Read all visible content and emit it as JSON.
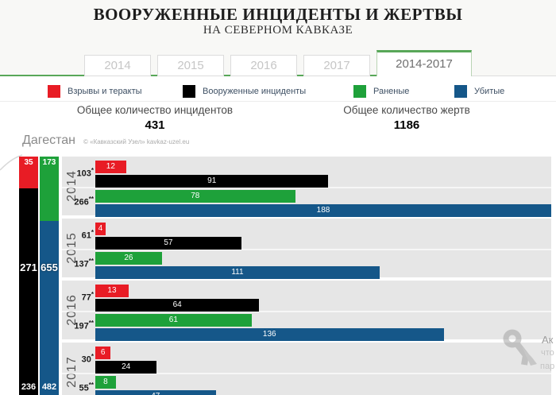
{
  "header": {
    "title": "ВООРУЖЕННЫЕ ИНЦИДЕНТЫ И ЖЕРТВЫ",
    "subtitle": "НА СЕВЕРНОМ КАВКАЗЕ"
  },
  "tabs": [
    {
      "label": "2014",
      "active": false
    },
    {
      "label": "2015",
      "active": false
    },
    {
      "label": "2016",
      "active": false
    },
    {
      "label": "2017",
      "active": false
    },
    {
      "label": "2014-2017",
      "active": true
    }
  ],
  "legend": [
    {
      "label": "Взрывы и теракты",
      "color": "#e81c25",
      "x": 60
    },
    {
      "label": "Вооруженные инциденты",
      "color": "#000000",
      "x": 230
    },
    {
      "label": "Раненые",
      "color": "#1ea13a",
      "x": 445
    },
    {
      "label": "Убитые",
      "color": "#155789",
      "x": 572
    }
  ],
  "stats": {
    "incidents_label": "Общее количество инцидентов",
    "incidents_value": "431",
    "victims_label": "Общее количество жертв",
    "victims_value": "1186"
  },
  "region": {
    "name": "Дагестан",
    "attribution": "© «Кавказский Узел» kavkaz-uzel.eu"
  },
  "watermark": {
    "lines": [
      "Ак",
      "что",
      "пар"
    ]
  },
  "colors": {
    "accent_green": "#58a758",
    "panel_gray": "#e6e6e6",
    "red": "#e81c25",
    "black": "#000000",
    "green": "#1ea13a",
    "blue": "#155789"
  },
  "chart_data": {
    "type": "bar",
    "orientation": "horizontal",
    "title": "Дагестан",
    "grid": false,
    "legend_position": "top",
    "x_max": 178,
    "categories": [
      "2014",
      "2015",
      "2016",
      "2017"
    ],
    "series": [
      {
        "name": "Взрывы и теракты",
        "color": "#e81c25",
        "values": [
          12,
          4,
          13,
          6
        ]
      },
      {
        "name": "Вооруженные инциденты",
        "color": "#000000",
        "values": [
          91,
          57,
          64,
          24
        ]
      },
      {
        "name": "Раненые",
        "color": "#1ea13a",
        "values": [
          78,
          26,
          61,
          8
        ]
      },
      {
        "name": "Убитые",
        "color": "#155789",
        "values": [
          188,
          111,
          136,
          47
        ]
      }
    ],
    "year_side_labels": [
      {
        "incidents": "103",
        "incidents_mark": "*",
        "victims": "266",
        "victims_mark": "**"
      },
      {
        "incidents": "61",
        "incidents_mark": "*",
        "victims": "137",
        "victims_mark": "**"
      },
      {
        "incidents": "77",
        "incidents_mark": "*",
        "victims": "197",
        "victims_mark": "**"
      },
      {
        "incidents": "30",
        "incidents_mark": "*",
        "victims": "55",
        "victims_mark": "**"
      }
    ],
    "summary_columns": [
      {
        "name": "incidents",
        "top_value": 35,
        "top_color": "#e81c25",
        "rest_value": 236,
        "rest_color": "#000000",
        "total": 271,
        "units_total": 271
      },
      {
        "name": "victims",
        "top_value": 173,
        "top_color": "#1ea13a",
        "rest_value": 482,
        "rest_color": "#155789",
        "total": 655,
        "units_total": 655
      }
    ]
  }
}
